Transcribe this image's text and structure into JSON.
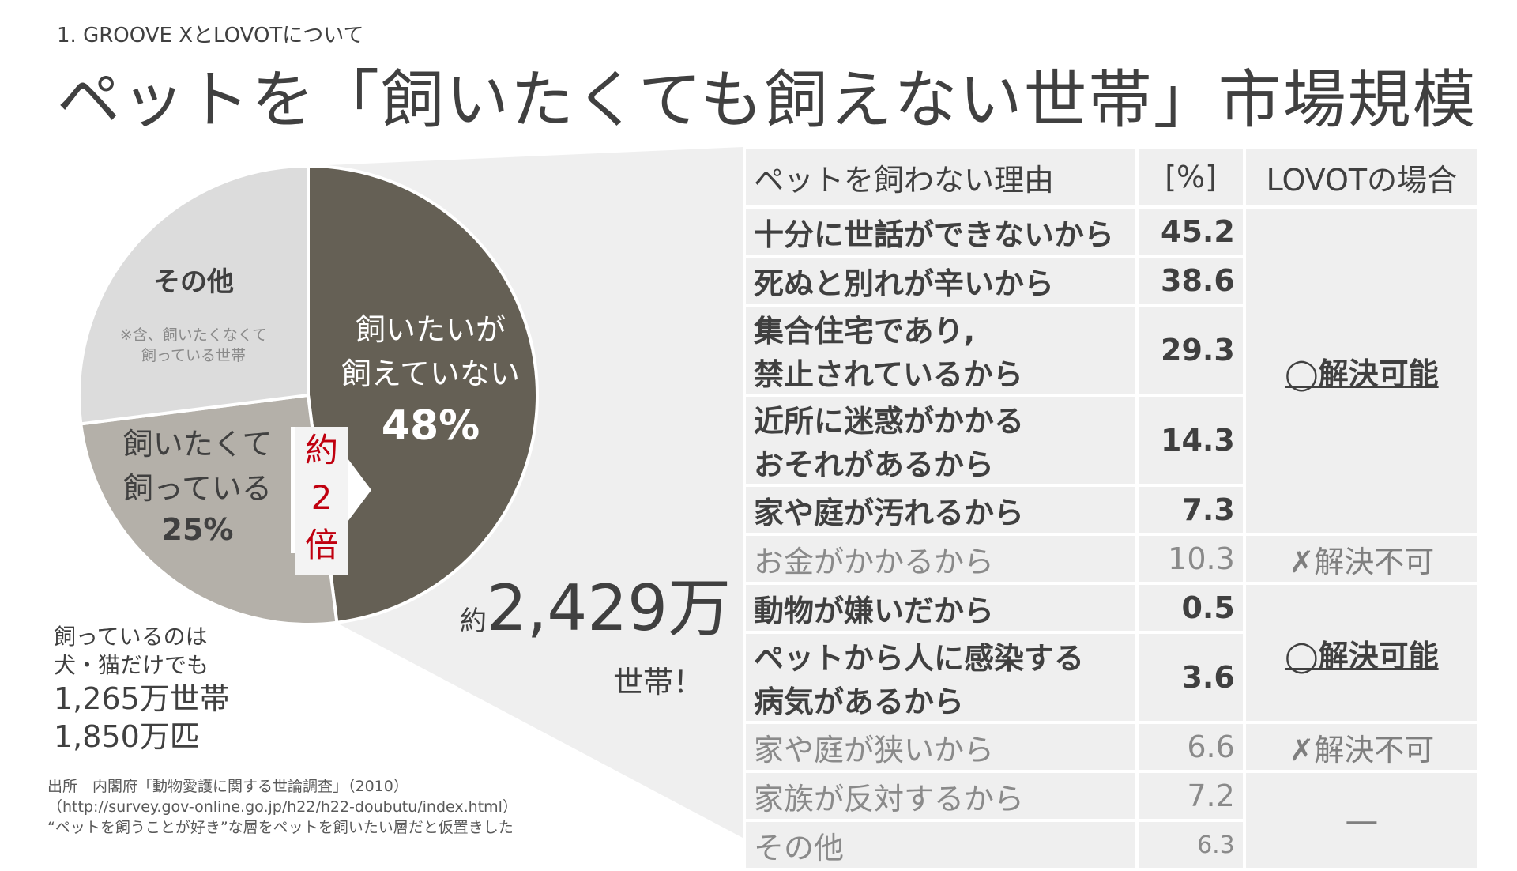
{
  "header": {
    "section_label": "1. GROOVE XとLOVOTについて",
    "title": "ペットを「飼いたくても飼えない世帯」市場規模"
  },
  "chart_data": [
    {
      "type": "pie",
      "slices": [
        {
          "label_lines": [
            "飼いたいが",
            "飼えていない"
          ],
          "value": 48,
          "value_label": "48%",
          "color": "#656055"
        },
        {
          "label_lines": [
            "飼いたくて",
            "飼っている"
          ],
          "value": 25,
          "value_label": "25%",
          "color": "#b4b0a9"
        },
        {
          "label_lines": [
            "その他"
          ],
          "value": 27,
          "value_label": "",
          "note_lines": [
            "※含、飼いたくなくて",
            "飼っている世帯"
          ],
          "color": "#dcdcdc"
        }
      ],
      "ratio_callout": [
        "約",
        "2",
        "倍"
      ]
    },
    {
      "type": "table",
      "columns": [
        "ペットを飼わない理由",
        "[%]",
        "LOVOTの場合"
      ],
      "rows": [
        {
          "reason": [
            "十分に世話ができないから"
          ],
          "value": "45.2",
          "solvable": true
        },
        {
          "reason": [
            "死ぬと別れが辛いから"
          ],
          "value": "38.6",
          "solvable": true
        },
        {
          "reason": [
            "集合住宅であり,",
            "禁止されているから"
          ],
          "value": "29.3",
          "solvable": true
        },
        {
          "reason": [
            "近所に迷惑がかかる",
            "おそれがあるから"
          ],
          "value": "14.3",
          "solvable": true
        },
        {
          "reason": [
            "家や庭が汚れるから"
          ],
          "value": "7.3",
          "solvable": true
        },
        {
          "reason": [
            "お金がかかるから"
          ],
          "value": "10.3",
          "solvable": false
        },
        {
          "reason": [
            "動物が嫌いだから"
          ],
          "value": "0.5",
          "solvable": true
        },
        {
          "reason": [
            "ペットから人に感染する",
            "病気があるから"
          ],
          "value": "3.6",
          "solvable": true
        },
        {
          "reason": [
            "家や庭が狭いから"
          ],
          "value": "6.6",
          "solvable": false
        },
        {
          "reason": [
            "家族が反対するから"
          ],
          "value": "7.2",
          "solvable": null
        },
        {
          "reason": [
            "その他"
          ],
          "value": "6.3",
          "solvable": null
        }
      ],
      "verdicts": [
        {
          "text": "◯解決可能",
          "rows": 5,
          "kind": "ok"
        },
        {
          "text": "✗解決不可",
          "rows": 1,
          "kind": "ng"
        },
        {
          "text": "◯解決可能",
          "rows": 2,
          "kind": "ok"
        },
        {
          "text": "✗解決不可",
          "rows": 1,
          "kind": "ng"
        },
        {
          "text": "―",
          "rows": 2,
          "kind": "na"
        }
      ]
    }
  ],
  "households": {
    "prefix": "約",
    "number": "2,429万",
    "suffix": "世帯！"
  },
  "owned": {
    "line1": "飼っているのは",
    "line2": "犬・猫だけでも",
    "households": "1,265万世帯",
    "animals": "1,850万匹"
  },
  "source": {
    "line1": "出所　内閣府「動物愛護に関する世論調査」（2010）",
    "line2": "（http://survey.gov-online.go.jp/h22/h22-doubutu/index.html）",
    "line3": "“ペットを飼うことが好き”な層をペットを飼いたい層だと仮置きした"
  },
  "colors": {
    "dark": "#656055",
    "mid": "#b4b0a9",
    "light": "#dcdcdc",
    "band": "#efefef",
    "accent": "#c0000f"
  }
}
